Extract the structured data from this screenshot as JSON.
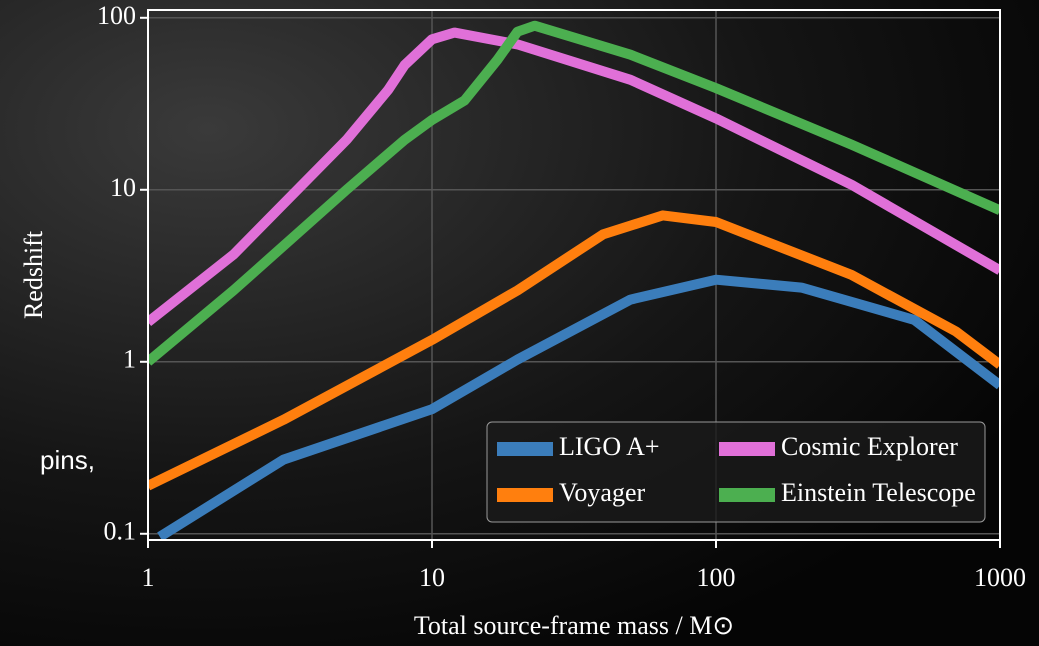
{
  "side_text": "pins,",
  "chart_data": {
    "type": "line",
    "xlabel": "Total source-frame mass / M⊙",
    "ylabel": "Redshift",
    "log_x": true,
    "log_y": true,
    "grid": true,
    "xlim": [
      1,
      1000
    ],
    "ylim": [
      0.092,
      111
    ],
    "xticks": [
      1,
      10,
      100,
      1000
    ],
    "yticks": [
      0.1,
      1,
      10,
      100
    ],
    "legend": "lower right",
    "series": [
      {
        "name": "LIGO A+",
        "color": "#3b7dbb",
        "x": [
          1.1,
          3,
          10,
          20,
          50,
          100,
          200,
          500,
          1000
        ],
        "values": [
          0.096,
          0.27,
          0.53,
          1.03,
          2.3,
          3.0,
          2.7,
          1.75,
          0.73
        ]
      },
      {
        "name": "Voyager",
        "color": "#ff7f0e",
        "x": [
          1,
          3,
          10,
          20,
          40,
          65,
          100,
          300,
          700,
          1000
        ],
        "values": [
          0.19,
          0.46,
          1.34,
          2.6,
          5.5,
          7.1,
          6.5,
          3.2,
          1.5,
          0.96
        ]
      },
      {
        "name": "Cosmic Explorer",
        "color": "#e070d8",
        "x": [
          1,
          2,
          5,
          7,
          8,
          10,
          12,
          20,
          50,
          100,
          300,
          1000
        ],
        "values": [
          1.7,
          4.2,
          19.5,
          38,
          53,
          75,
          82,
          70,
          43.6,
          26,
          10.7,
          3.4
        ]
      },
      {
        "name": "Einstein Telescope",
        "color": "#4caf50",
        "x": [
          1,
          2,
          5,
          8,
          10,
          13,
          17,
          20,
          23,
          50,
          100,
          300,
          1000
        ],
        "values": [
          1.0,
          2.6,
          10,
          19.5,
          25.5,
          33,
          57,
          83,
          90,
          61,
          39,
          18.3,
          7.6
        ]
      }
    ]
  }
}
